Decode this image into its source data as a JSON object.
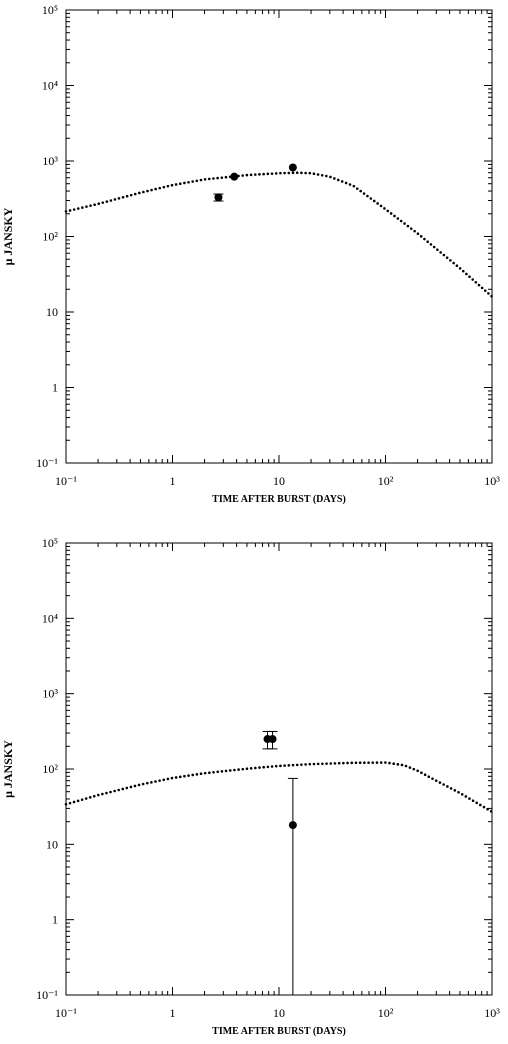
{
  "chart_data": [
    {
      "type": "scatter",
      "xlabel": "TIME AFTER BURST (DAYS)",
      "ylabel": "μ JANSKY",
      "xscale": "log",
      "yscale": "log",
      "color": "#000000",
      "xlim": [
        0.1,
        1000
      ],
      "ylim": [
        0.1,
        100000
      ],
      "xticks": [
        {
          "value": 0.1,
          "label": "10⁻¹"
        },
        1,
        10,
        {
          "value": 100,
          "label": "10²"
        },
        {
          "value": 1000,
          "label": "10³"
        }
      ],
      "yticks": [
        {
          "value": 0.1,
          "label": "10⁻¹"
        },
        1,
        10,
        {
          "value": 100,
          "label": "10²"
        },
        {
          "value": 1000,
          "label": "10³"
        },
        {
          "value": 10000,
          "label": "10⁴"
        },
        {
          "value": 100000,
          "label": "10⁵"
        }
      ],
      "model": {
        "x": [
          0.1,
          0.2,
          0.5,
          1,
          2,
          5,
          10,
          15,
          20,
          30,
          50,
          100,
          200,
          500,
          1000
        ],
        "y": [
          215,
          270,
          380,
          480,
          570,
          650,
          690,
          700,
          690,
          620,
          470,
          230,
          110,
          38,
          16
        ]
      },
      "points": {
        "x": [
          2.7,
          3.8,
          13.5
        ],
        "y": [
          330,
          620,
          820
        ],
        "yerr": [
          35,
          0,
          0
        ]
      }
    },
    {
      "type": "scatter",
      "xlabel": "TIME AFTER BURST (DAYS)",
      "ylabel": "μ JANSKY",
      "xscale": "log",
      "yscale": "log",
      "color": "#000000",
      "xlim": [
        0.1,
        1000
      ],
      "ylim": [
        0.1,
        100000
      ],
      "xticks": [
        {
          "value": 0.1,
          "label": "10⁻¹"
        },
        1,
        10,
        {
          "value": 100,
          "label": "10²"
        },
        {
          "value": 1000,
          "label": "10³"
        }
      ],
      "yticks": [
        {
          "value": 0.1,
          "label": "10⁻¹"
        },
        1,
        10,
        {
          "value": 100,
          "label": "10²"
        },
        {
          "value": 1000,
          "label": "10³"
        },
        {
          "value": 10000,
          "label": "10⁴"
        },
        {
          "value": 100000,
          "label": "10⁵"
        }
      ],
      "model": {
        "x": [
          0.1,
          0.2,
          0.5,
          1,
          2,
          5,
          10,
          20,
          50,
          100,
          150,
          200,
          300,
          500,
          1000
        ],
        "y": [
          34,
          45,
          62,
          76,
          88,
          101,
          110,
          116,
          121,
          122,
          112,
          95,
          70,
          48,
          27
        ]
      },
      "points": {
        "x": [
          7.8,
          8.7,
          13.5
        ],
        "y": [
          250,
          250,
          18
        ],
        "yerr": [
          65,
          65,
          57
        ]
      }
    }
  ]
}
